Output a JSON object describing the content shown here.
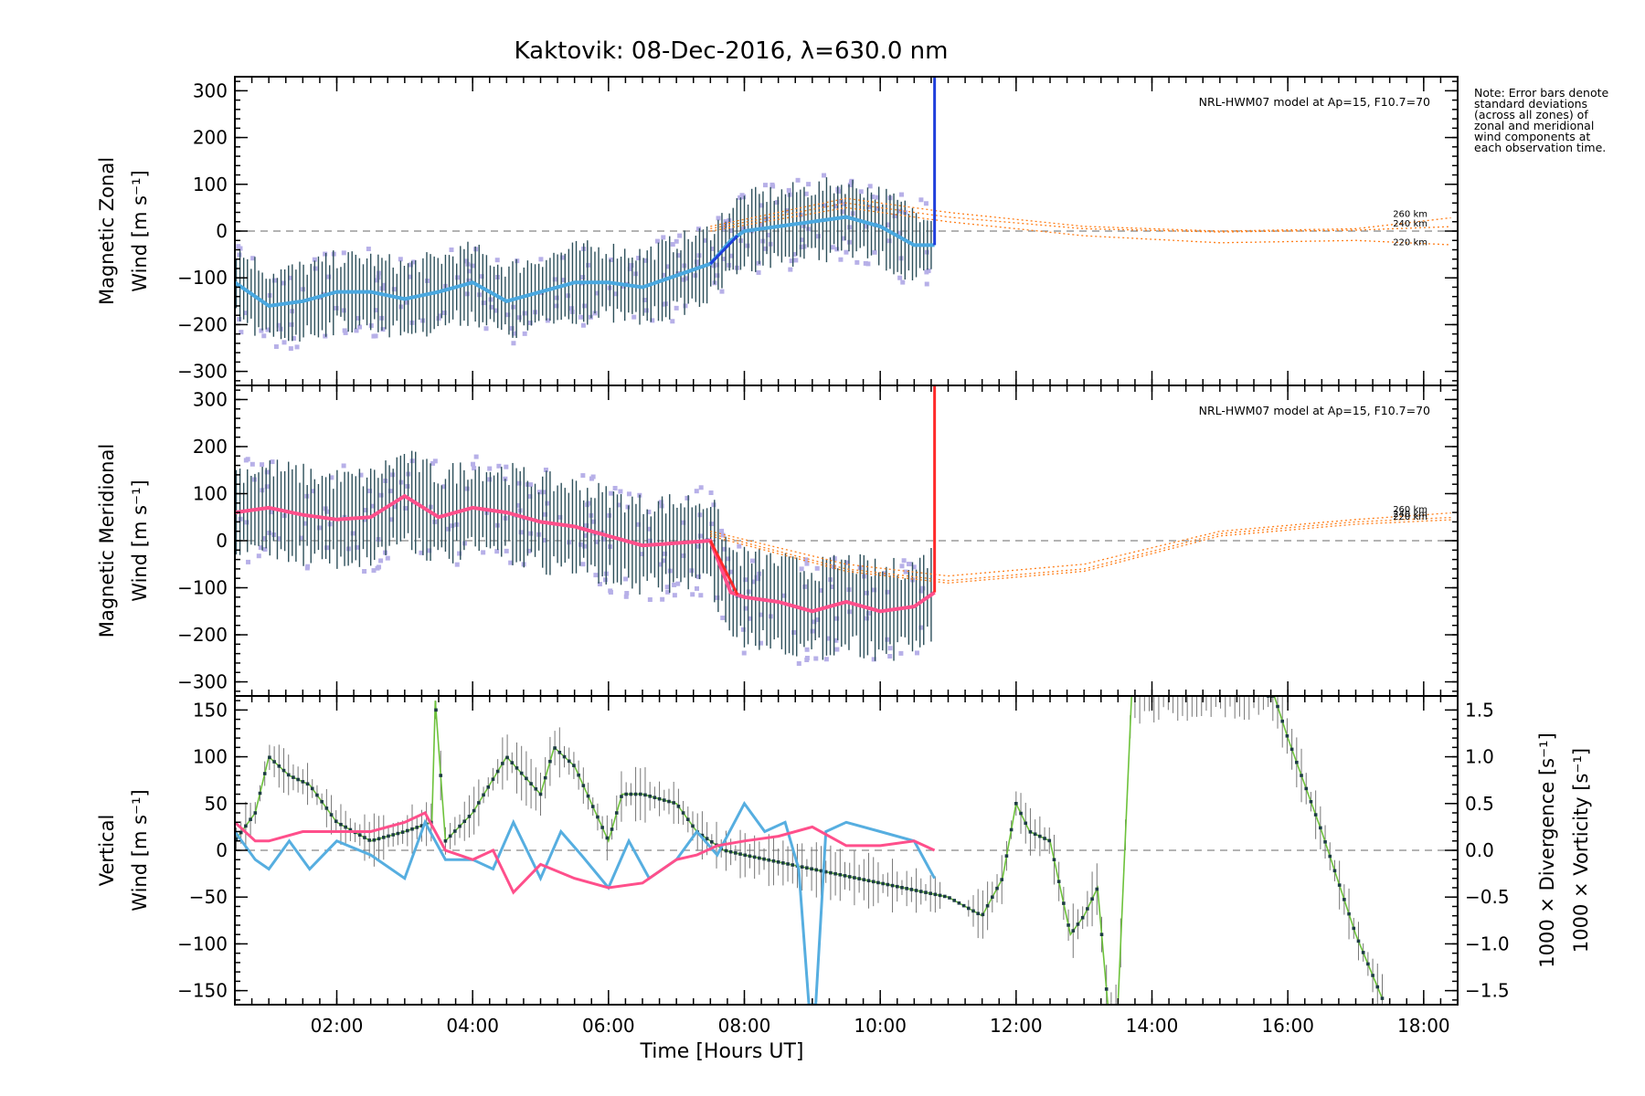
{
  "title": "Kaktovik: 08-Dec-2016, λ=630.0 nm",
  "note": "Note: Error bars denote standard deviations (across all zones) of zonal and meridional wind components at each observation time.",
  "xlabel": "Time [Hours UT]",
  "colors": {
    "zonal": "#1f3fdc",
    "zonal_avg": "#4aa8e0",
    "meridional": "#ff2a2a",
    "meridional_avg": "#ff4f8b",
    "model": "#ff7f1a",
    "vertical": "#6dc23b",
    "divergence": "#56aee0",
    "vorticity": "#ff4f8b",
    "scatter": "#b7b0e8",
    "errbar": "#2c4f5a"
  },
  "chart_data": [
    {
      "type": "line",
      "panel": "zonal",
      "ylabel_top": "Magnetic Zonal",
      "ylabel_bottom": "Wind [m s⁻¹]",
      "model_label": "NRL-HWM07 model at Ap=15, F10.7=70",
      "model_heights": [
        "260 km",
        "240 km",
        "220 km"
      ],
      "xlim": [
        0.5,
        18.5
      ],
      "ylim": [
        -330,
        330
      ],
      "yticks": [
        "300",
        "200",
        "100",
        "0",
        "−100",
        "−200",
        "−300"
      ],
      "xticks": [
        "02:00",
        "04:00",
        "06:00",
        "08:00",
        "10:00",
        "12:00",
        "14:00",
        "16:00",
        "18:00"
      ],
      "series": [
        {
          "x": [
            0.5,
            1.0,
            1.5,
            2.0,
            2.5,
            3.0,
            3.5,
            4.0,
            4.5,
            5.0,
            5.5,
            6.0,
            6.5,
            7.0,
            7.5,
            7.8,
            8.0,
            8.5,
            9.0,
            9.5,
            10.0,
            10.5,
            10.8
          ],
          "y": [
            -110,
            -160,
            -150,
            -130,
            -130,
            -145,
            -130,
            -110,
            -150,
            -130,
            -110,
            -110,
            -120,
            -95,
            -70,
            -20,
            0,
            10,
            20,
            30,
            10,
            -30,
            -30
          ]
        }
      ],
      "model": [
        {
          "name": "260 km",
          "x": [
            7.5,
            9.5,
            11,
            13,
            15,
            17,
            18.5
          ],
          "y": [
            10,
            70,
            40,
            10,
            0,
            5,
            30
          ]
        },
        {
          "name": "240 km",
          "x": [
            7.5,
            9.5,
            11,
            13,
            15,
            17,
            18.5
          ],
          "y": [
            5,
            60,
            30,
            5,
            -2,
            2,
            10
          ]
        },
        {
          "name": "220 km",
          "x": [
            7.5,
            9.5,
            11,
            13,
            15,
            17,
            18.5
          ],
          "y": [
            0,
            50,
            20,
            -10,
            -25,
            -20,
            -30
          ]
        }
      ],
      "spread": 70
    },
    {
      "type": "line",
      "panel": "meridional",
      "ylabel_top": "Magnetic Meridional",
      "ylabel_bottom": "Wind [m s⁻¹]",
      "model_label": "NRL-HWM07 model at Ap=15, F10.7=70",
      "model_heights": [
        "260 km",
        "240 km",
        "220 km"
      ],
      "xlim": [
        0.5,
        18.5
      ],
      "ylim": [
        -330,
        330
      ],
      "yticks": [
        "300",
        "200",
        "100",
        "0",
        "−100",
        "−200",
        "−300"
      ],
      "xticks": [
        "02:00",
        "04:00",
        "06:00",
        "08:00",
        "10:00",
        "12:00",
        "14:00",
        "16:00",
        "18:00"
      ],
      "series": [
        {
          "x": [
            0.5,
            1.0,
            1.5,
            2.0,
            2.5,
            3.0,
            3.5,
            4.0,
            4.5,
            5.0,
            5.5,
            6.0,
            6.5,
            7.0,
            7.5,
            7.8,
            8.0,
            8.5,
            9.0,
            9.5,
            10.0,
            10.5,
            10.8
          ],
          "y": [
            60,
            70,
            55,
            45,
            50,
            95,
            50,
            70,
            60,
            40,
            30,
            10,
            -10,
            -5,
            0,
            -110,
            -120,
            -130,
            -150,
            -130,
            -150,
            -140,
            -110
          ]
        }
      ],
      "model": [
        {
          "name": "260 km",
          "x": [
            7.5,
            9.5,
            11,
            13,
            15,
            17,
            18.5
          ],
          "y": [
            20,
            -50,
            -75,
            -50,
            20,
            45,
            60
          ]
        },
        {
          "name": "240 km",
          "x": [
            7.5,
            9.5,
            11,
            13,
            15,
            17,
            18.5
          ],
          "y": [
            15,
            -60,
            -85,
            -60,
            15,
            40,
            50
          ]
        },
        {
          "name": "220 km",
          "x": [
            7.5,
            9.5,
            11,
            13,
            15,
            17,
            18.5
          ],
          "y": [
            10,
            -65,
            -90,
            -65,
            10,
            35,
            45
          ]
        }
      ],
      "spread": 85
    },
    {
      "type": "line",
      "panel": "vertical",
      "ylabel_top": "Vertical",
      "ylabel_bottom": "Wind [m s⁻¹]",
      "y2label_div": "1000 × Divergence [s⁻¹]",
      "y2label_vort": "1000 × Vorticity [s⁻¹]",
      "xlim": [
        0.5,
        18.5
      ],
      "ylim": [
        -165,
        165
      ],
      "y2lim": [
        -1.65,
        1.65
      ],
      "yticks": [
        "150",
        "100",
        "50",
        "0",
        "−50",
        "−100",
        "−150"
      ],
      "y2ticks": [
        "1.5",
        "1.0",
        "0.5",
        "0.0",
        "−0.5",
        "−1.0",
        "−1.5"
      ],
      "xticks": [
        "02:00",
        "04:00",
        "06:00",
        "08:00",
        "10:00",
        "12:00",
        "14:00",
        "16:00",
        "18:00"
      ],
      "series": [
        {
          "name": "Vertical",
          "x": [
            0.5,
            0.8,
            1.0,
            1.3,
            1.6,
            2.0,
            2.5,
            3.0,
            3.4,
            3.45,
            3.6,
            4.0,
            4.5,
            5.0,
            5.2,
            5.5,
            6.0,
            6.2,
            6.5,
            7.0,
            7.3,
            7.7,
            8.0,
            9.0,
            10.0,
            11.0,
            11.5,
            11.8,
            12.0,
            12.2,
            12.5,
            12.8,
            13.0,
            13.2,
            13.35,
            13.5,
            13.7,
            14.0,
            14.5,
            15.0,
            15.5,
            15.8,
            16.0,
            16.5,
            17.0,
            17.4
          ],
          "y": [
            10,
            40,
            100,
            80,
            70,
            30,
            10,
            20,
            30,
            160,
            10,
            40,
            100,
            60,
            110,
            90,
            10,
            60,
            60,
            50,
            20,
            0,
            -5,
            -20,
            -35,
            -50,
            -70,
            -30,
            50,
            20,
            10,
            -90,
            -70,
            -40,
            -165,
            -165,
            165,
            165,
            165,
            165,
            165,
            165,
            120,
            20,
            -90,
            -160
          ]
        },
        {
          "name": "Divergence",
          "x": [
            0.5,
            0.8,
            1.0,
            1.3,
            1.6,
            2.0,
            2.5,
            3.0,
            3.3,
            3.6,
            4.0,
            4.3,
            4.6,
            5.0,
            5.3,
            5.6,
            6.0,
            6.3,
            6.6,
            7.0,
            7.3,
            7.6,
            8.0,
            8.3,
            8.6,
            8.8,
            8.95,
            9.05,
            9.2,
            9.5,
            10.0,
            10.5,
            10.8
          ],
          "y": [
            0.2,
            -0.1,
            -0.2,
            0.1,
            -0.2,
            0.1,
            -0.05,
            -0.3,
            0.3,
            -0.1,
            -0.1,
            -0.2,
            0.3,
            -0.3,
            0.2,
            -0.05,
            -0.4,
            0.1,
            -0.3,
            -0.1,
            0.2,
            -0.05,
            0.5,
            0.2,
            0.3,
            -0.2,
            -1.65,
            -1.65,
            0.2,
            0.3,
            0.2,
            0.1,
            -0.3
          ]
        },
        {
          "name": "Vorticity",
          "x": [
            0.5,
            0.8,
            1.0,
            1.5,
            2.0,
            2.5,
            3.0,
            3.3,
            3.6,
            4.0,
            4.3,
            4.6,
            5.0,
            5.5,
            6.0,
            6.5,
            7.0,
            7.3,
            7.6,
            8.0,
            8.5,
            9.0,
            9.5,
            10.0,
            10.5,
            10.8
          ],
          "y": [
            0.3,
            0.1,
            0.1,
            0.2,
            0.2,
            0.2,
            0.3,
            0.4,
            0.0,
            -0.1,
            0.0,
            -0.45,
            -0.15,
            -0.3,
            -0.4,
            -0.35,
            -0.1,
            -0.05,
            0.05,
            0.1,
            0.15,
            0.25,
            0.05,
            0.05,
            0.1,
            0.0
          ]
        }
      ]
    }
  ]
}
